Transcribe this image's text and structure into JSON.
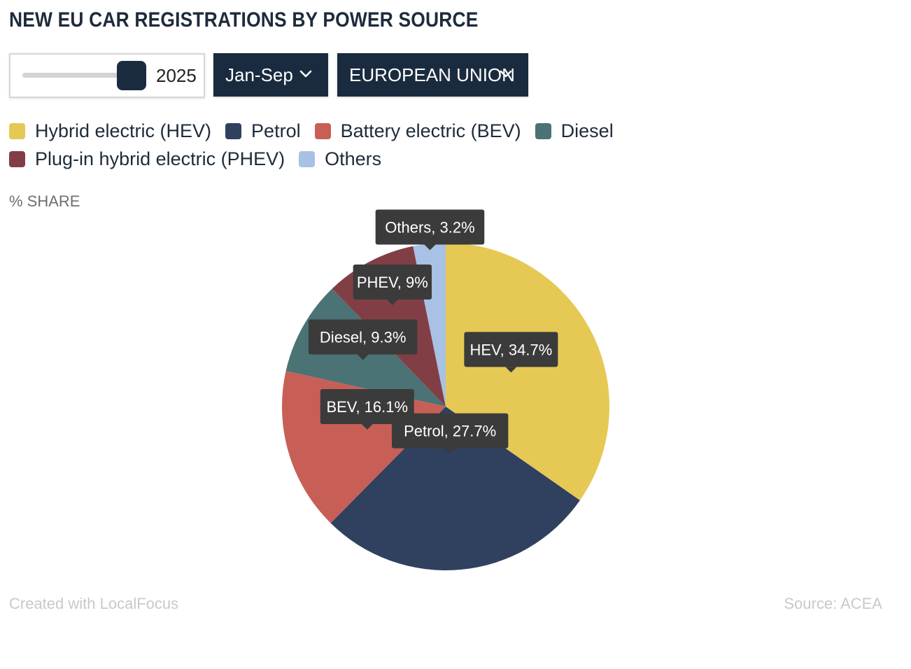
{
  "title": "NEW EU CAR REGISTRATIONS BY POWER SOURCE",
  "controls": {
    "year_value": "2025",
    "period_label": "Jan-Sep",
    "region_label": "EUROPEAN UNION"
  },
  "unit_label": "% SHARE",
  "footer": {
    "credit": "Created with LocalFocus",
    "source": "Source:  ACEA"
  },
  "chart_data": {
    "type": "pie",
    "unit": "% SHARE",
    "slices": [
      {
        "name": "Hybrid electric (HEV)",
        "short": "HEV",
        "value": 34.7,
        "label": "HEV, 34.7%",
        "color": "#e6c955"
      },
      {
        "name": "Petrol",
        "short": "Petrol",
        "value": 27.7,
        "label": "Petrol, 27.7%",
        "color": "#2f415e"
      },
      {
        "name": "Battery electric (BEV)",
        "short": "BEV",
        "value": 16.1,
        "label": "BEV, 16.1%",
        "color": "#c75f57"
      },
      {
        "name": "Diesel",
        "short": "Diesel",
        "value": 9.3,
        "label": "Diesel, 9.3%",
        "color": "#4b7274"
      },
      {
        "name": "Plug-in hybrid electric (PHEV)",
        "short": "PHEV",
        "value": 9,
        "label": "PHEV, 9%",
        "color": "#813f45"
      },
      {
        "name": "Others",
        "short": "Others",
        "value": 3.2,
        "label": "Others, 3.2%",
        "color": "#a8c1e4"
      }
    ],
    "legend_position": "top"
  }
}
